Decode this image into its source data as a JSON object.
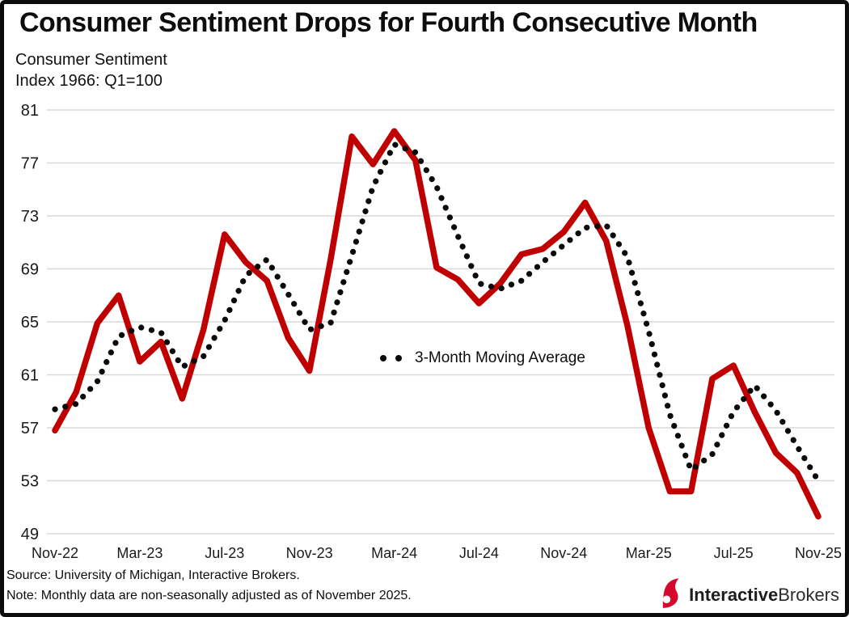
{
  "header": {
    "title": "Consumer Sentiment Drops for Fourth Consecutive Month",
    "subtitle_line1": "Consumer Sentiment",
    "subtitle_line2": "Index 1966: Q1=100"
  },
  "legend": {
    "label": "3-Month Moving Average"
  },
  "footer": {
    "source": "Source: University of Michigan, Interactive Brokers.",
    "note": "Note: Monthly data are non-seasonally adjusted as of November 2025."
  },
  "logo": {
    "bold": "Interactive",
    "regular": "Brokers",
    "icon": "interactive-brokers-spinnaker-icon",
    "icon_color": "#d6092c"
  },
  "colors": {
    "sentiment_line": "#c00000",
    "moving_average": "#0a0a0a",
    "gridline": "#d9d9d9",
    "axis_text": "#1a1a1a",
    "frame": "#0c0c0c",
    "background": "#ffffff"
  },
  "chart_data": {
    "type": "line",
    "title": "Consumer Sentiment Drops for Fourth Consecutive Month",
    "ylabel": "Consumer Sentiment Index 1966: Q1=100",
    "xlabel": "",
    "grid": "horizontal",
    "ylim": [
      49,
      81
    ],
    "y_ticks": [
      49,
      53,
      57,
      61,
      65,
      69,
      73,
      77,
      81
    ],
    "x": [
      "Nov-22",
      "Dec-22",
      "Jan-23",
      "Feb-23",
      "Mar-23",
      "Apr-23",
      "May-23",
      "Jun-23",
      "Jul-23",
      "Aug-23",
      "Sep-23",
      "Oct-23",
      "Nov-23",
      "Dec-23",
      "Jan-24",
      "Feb-24",
      "Mar-24",
      "Apr-24",
      "May-24",
      "Jun-24",
      "Jul-24",
      "Aug-24",
      "Sep-24",
      "Oct-24",
      "Nov-24",
      "Dec-24",
      "Jan-25",
      "Feb-25",
      "Mar-25",
      "Apr-25",
      "May-25",
      "Jun-25",
      "Jul-25",
      "Aug-25",
      "Sep-25",
      "Oct-25",
      "Nov-25"
    ],
    "x_tick_labels": [
      "Nov-22",
      "Mar-23",
      "Jul-23",
      "Nov-23",
      "Mar-24",
      "Jul-24",
      "Nov-24",
      "Mar-25",
      "Jul-25",
      "Nov-25"
    ],
    "x_tick_every": 4,
    "legend_position": "inside-center",
    "series": [
      {
        "name": "Consumer Sentiment",
        "style": "solid",
        "color": "#c00000",
        "values": [
          56.8,
          59.7,
          64.9,
          67.0,
          62.0,
          63.5,
          59.2,
          64.4,
          71.6,
          69.5,
          68.1,
          63.8,
          61.3,
          69.7,
          79.0,
          76.9,
          79.4,
          77.2,
          69.1,
          68.2,
          66.4,
          67.9,
          70.1,
          70.5,
          71.8,
          74.0,
          71.1,
          64.7,
          57.0,
          52.2,
          52.2,
          60.7,
          61.7,
          58.2,
          55.1,
          53.6,
          50.3
        ]
      },
      {
        "name": "3-Month Moving Average",
        "style": "dotted",
        "color": "#0a0a0a",
        "values": [
          58.4,
          58.8,
          60.5,
          63.9,
          64.6,
          64.2,
          61.6,
          62.4,
          65.1,
          68.5,
          69.7,
          67.1,
          64.4,
          64.9,
          70.0,
          75.2,
          78.4,
          77.8,
          75.2,
          71.5,
          67.9,
          67.5,
          68.1,
          69.5,
          70.8,
          72.1,
          72.3,
          69.9,
          64.3,
          58.0,
          53.8,
          55.0,
          58.2,
          60.2,
          58.3,
          55.6,
          53.0
        ]
      }
    ]
  }
}
